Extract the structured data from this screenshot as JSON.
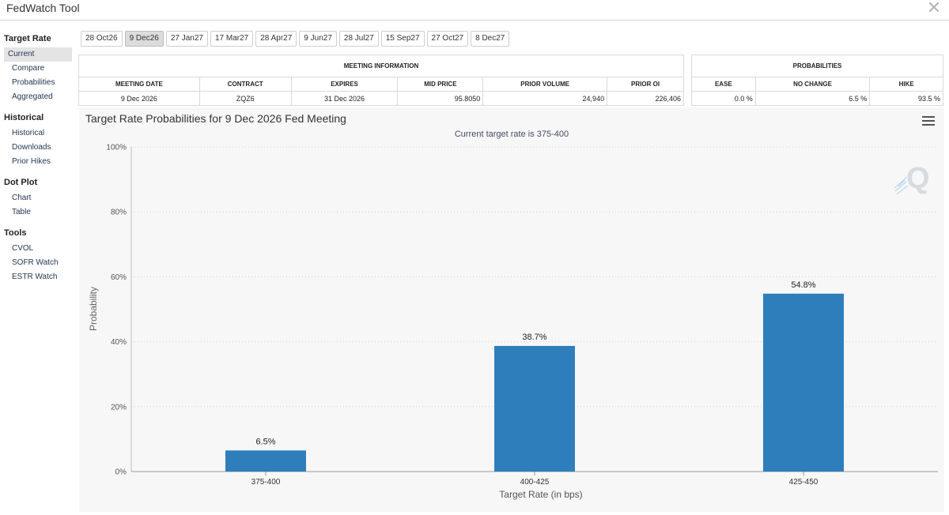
{
  "app": {
    "title": "FedWatch Tool"
  },
  "sidebar": {
    "sections": [
      {
        "header": "Target Rate",
        "items": [
          "Current",
          "Compare",
          "Probabilities",
          "Aggregated"
        ]
      },
      {
        "header": "Historical",
        "items": [
          "Historical",
          "Downloads",
          "Prior Hikes"
        ]
      },
      {
        "header": "Dot Plot",
        "items": [
          "Chart",
          "Table"
        ]
      },
      {
        "header": "Tools",
        "items": [
          "CVOL",
          "SOFR Watch",
          "ESTR Watch"
        ]
      }
    ],
    "active_item": "Current"
  },
  "meeting_tabs": {
    "labels": [
      "28 Oct26",
      "9 Dec26",
      "27 Jan27",
      "17 Mar27",
      "28 Apr27",
      "9 Jun27",
      "28 Jul27",
      "15 Sep27",
      "27 Oct27",
      "8 Dec27"
    ],
    "active": "9 Dec26"
  },
  "meeting_info": {
    "header": "MEETING INFORMATION",
    "columns": [
      "MEETING DATE",
      "CONTRACT",
      "EXPIRES",
      "MID PRICE",
      "PRIOR VOLUME",
      "PRIOR OI"
    ],
    "values": [
      "9 Dec 2026",
      "ZQZ6",
      "31 Dec 2026",
      "95.8050",
      "24,940",
      "226,406"
    ]
  },
  "probabilities": {
    "header": "PROBABILITIES",
    "columns": [
      "EASE",
      "NO CHANGE",
      "HIKE"
    ],
    "values": [
      "0.0 %",
      "6.5 %",
      "93.5 %"
    ]
  },
  "chart": {
    "title": "Target Rate Probabilities for 9 Dec 2026 Fed Meeting",
    "subtitle": "Current target rate is 375-400",
    "bar_color": "#2f7ebc",
    "accent_color": "#9fc9e6"
  },
  "chart_data": {
    "type": "bar",
    "title": "Target Rate Probabilities for 9 Dec 2026 Fed Meeting",
    "subtitle": "Current target rate is 375-400",
    "categories": [
      "375-400",
      "400-425",
      "425-450"
    ],
    "values": [
      6.5,
      38.7,
      54.8
    ],
    "value_labels": [
      "6.5%",
      "38.7%",
      "54.8%"
    ],
    "xlabel": "Target Rate (in bps)",
    "ylabel": "Probability",
    "ylim": [
      0,
      100
    ],
    "yticks": [
      "0%",
      "20%",
      "40%",
      "60%",
      "80%",
      "100%"
    ],
    "grid": true,
    "legend": "none"
  }
}
